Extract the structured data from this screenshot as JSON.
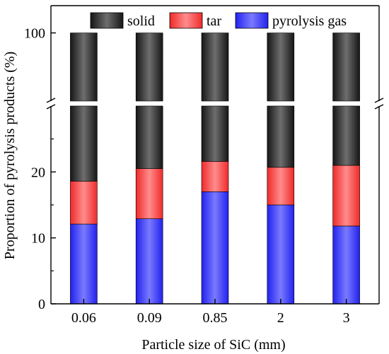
{
  "chart_data": {
    "type": "bar",
    "stacked": true,
    "broken_y_axis": true,
    "title": "",
    "xlabel": "Particle size of SiC (mm)",
    "ylabel": "Proportion of pyrolysis products (%)",
    "categories": [
      "0.06",
      "0.09",
      "0.85",
      "2",
      "3"
    ],
    "ylim_lower": [
      0,
      30
    ],
    "ylim_upper": [
      95,
      102
    ],
    "yticks": [
      0,
      10,
      20,
      100
    ],
    "series": [
      {
        "name": "pyrolysis gas",
        "values": [
          12.1,
          12.9,
          17.0,
          15.0,
          11.8
        ],
        "color": "#4a4aff"
      },
      {
        "name": "tar",
        "values": [
          6.5,
          7.6,
          4.6,
          5.7,
          9.2
        ],
        "color": "#ff5a5a"
      },
      {
        "name": "solid",
        "values": [
          81.4,
          79.5,
          78.4,
          79.3,
          79.0
        ],
        "color": "#3a3a3a"
      }
    ],
    "legend_placement": "top",
    "grid": false
  }
}
